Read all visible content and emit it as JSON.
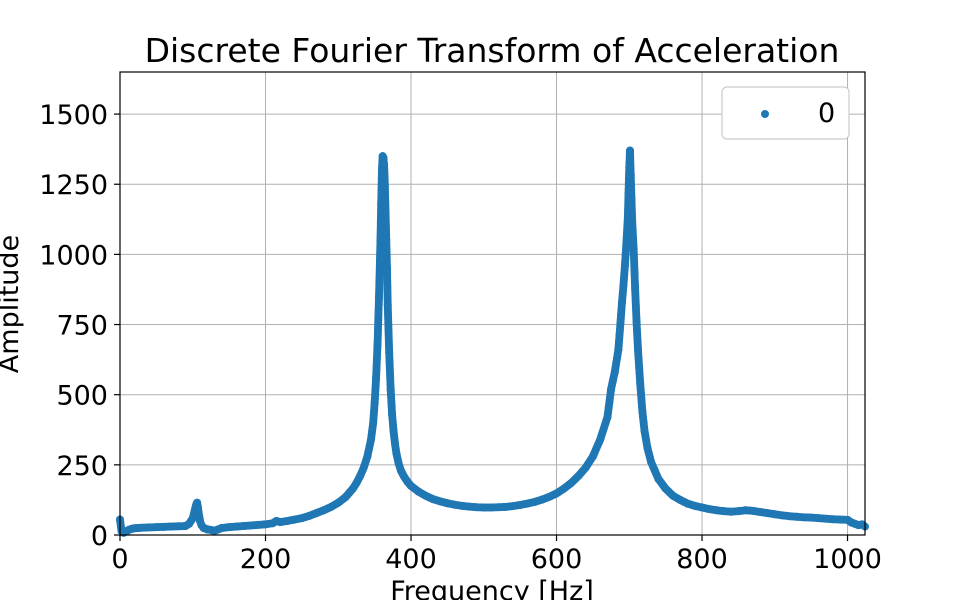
{
  "chart_data": {
    "type": "scatter",
    "title": "Discrete Fourier Transform of Acceleration",
    "xlabel": "Frequency [Hz]",
    "ylabel": "Amplitude",
    "xlim": [
      0,
      1024
    ],
    "ylim": [
      0,
      1650
    ],
    "xticks": [
      0,
      200,
      400,
      600,
      800,
      1000
    ],
    "yticks": [
      0,
      250,
      500,
      750,
      1000,
      1250,
      1500
    ],
    "grid": true,
    "legend_position": "top-right",
    "series": [
      {
        "name": "0",
        "color": "#1f77b4",
        "x": [
          0,
          2,
          5,
          8,
          12,
          16,
          20,
          25,
          30,
          40,
          50,
          60,
          70,
          80,
          90,
          95,
          100,
          103,
          105,
          106,
          107,
          108,
          110,
          112,
          115,
          120,
          125,
          130,
          135,
          140,
          150,
          160,
          170,
          180,
          190,
          200,
          210,
          215,
          220,
          230,
          240,
          250,
          260,
          270,
          280,
          290,
          300,
          310,
          315,
          320,
          325,
          330,
          335,
          340,
          345,
          348,
          350,
          352,
          354,
          356,
          358,
          359,
          360,
          361,
          362,
          363,
          364,
          365,
          366,
          367,
          368,
          370,
          372,
          374,
          376,
          378,
          380,
          383,
          386,
          390,
          395,
          400,
          410,
          420,
          430,
          440,
          450,
          460,
          470,
          480,
          490,
          500,
          510,
          520,
          530,
          540,
          550,
          560,
          570,
          580,
          590,
          600,
          610,
          620,
          630,
          640,
          650,
          660,
          670,
          675,
          680,
          685,
          688,
          690,
          692,
          694,
          696,
          698,
          699,
          700,
          701,
          702,
          703,
          704,
          706,
          708,
          710,
          712,
          715,
          718,
          721,
          725,
          730,
          735,
          740,
          750,
          760,
          770,
          780,
          790,
          800,
          810,
          820,
          830,
          840,
          850,
          860,
          870,
          880,
          890,
          900,
          910,
          920,
          930,
          940,
          950,
          960,
          970,
          980,
          990,
          1000,
          1005,
          1010,
          1015,
          1020,
          1024
        ],
        "y": [
          55,
          15,
          8,
          12,
          18,
          22,
          24,
          25,
          26,
          27,
          28,
          29,
          30,
          31,
          32,
          40,
          60,
          90,
          110,
          115,
          100,
          80,
          50,
          35,
          25,
          20,
          18,
          15,
          20,
          25,
          28,
          30,
          32,
          34,
          36,
          38,
          42,
          50,
          46,
          50,
          55,
          60,
          68,
          78,
          88,
          100,
          115,
          135,
          150,
          165,
          185,
          210,
          240,
          280,
          340,
          400,
          470,
          560,
          680,
          850,
          1050,
          1180,
          1300,
          1350,
          1345,
          1320,
          1250,
          1150,
          1050,
          950,
          820,
          650,
          520,
          430,
          370,
          325,
          290,
          255,
          230,
          210,
          190,
          175,
          155,
          140,
          128,
          120,
          113,
          108,
          104,
          101,
          99,
          98,
          98,
          99,
          100,
          103,
          107,
          112,
          118,
          126,
          136,
          148,
          165,
          185,
          210,
          240,
          280,
          340,
          420,
          520,
          580,
          660,
          760,
          830,
          890,
          960,
          1040,
          1130,
          1220,
          1310,
          1370,
          1280,
          1200,
          1120,
          1020,
          880,
          760,
          660,
          540,
          440,
          370,
          310,
          260,
          230,
          200,
          165,
          140,
          125,
          112,
          104,
          98,
          92,
          88,
          85,
          83,
          85,
          88,
          86,
          82,
          78,
          74,
          70,
          67,
          65,
          63,
          62,
          60,
          58,
          56,
          55,
          54,
          45,
          40,
          35,
          38,
          30
        ]
      }
    ]
  },
  "legend": {
    "label": "0"
  }
}
